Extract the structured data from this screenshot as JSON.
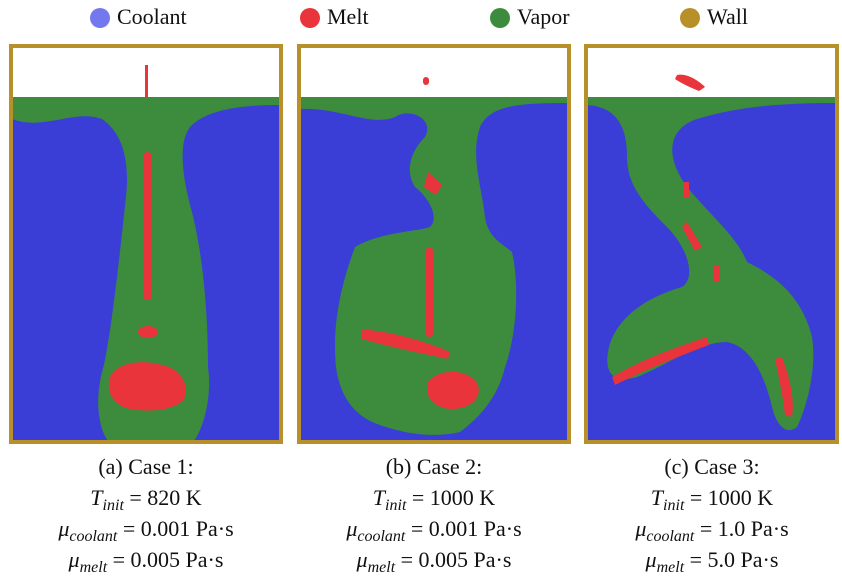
{
  "legend": [
    {
      "label": "Coolant",
      "color": "#7478ee"
    },
    {
      "label": "Melt",
      "color": "#e8343a"
    },
    {
      "label": "Vapor",
      "color": "#3d8c3d"
    },
    {
      "label": "Wall",
      "color": "#b8902a"
    }
  ],
  "panels": [
    {
      "caption": "(a) Case 1:",
      "lines": [
        {
          "symbol": "T",
          "subscript": "init",
          "text": " = 820 K"
        },
        {
          "symbol": "μ",
          "subscript": "coolant",
          "text": " = 0.001 Pa·s"
        },
        {
          "symbol": "μ",
          "subscript": "melt",
          "text": " = 0.005 Pa·s"
        }
      ]
    },
    {
      "caption": "(b) Case 2:",
      "lines": [
        {
          "symbol": "T",
          "subscript": "init",
          "text": " = 1000 K"
        },
        {
          "symbol": "μ",
          "subscript": "coolant",
          "text": " = 0.001 Pa·s"
        },
        {
          "symbol": "μ",
          "subscript": "melt",
          "text": " = 0.005 Pa·s"
        }
      ]
    },
    {
      "caption": "(c) Case 3:",
      "lines": [
        {
          "symbol": "T",
          "subscript": "init",
          "text": " = 1000 K"
        },
        {
          "symbol": "μ",
          "subscript": "coolant",
          "text": " = 1.0 Pa·s"
        },
        {
          "symbol": "μ",
          "subscript": "melt",
          "text": " = 5.0 Pa·s"
        }
      ]
    }
  ]
}
